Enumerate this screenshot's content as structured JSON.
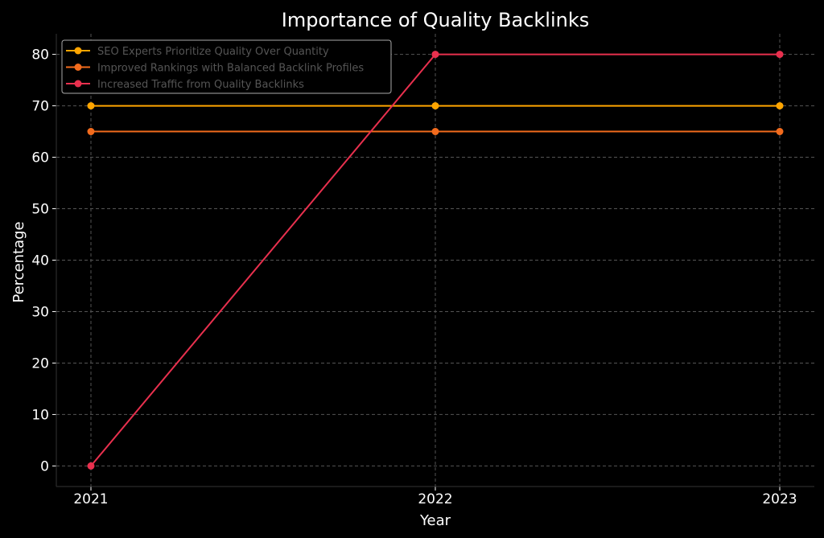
{
  "chart_data": {
    "type": "line",
    "title": "Importance of Quality Backlinks",
    "xlabel": "Year",
    "ylabel": "Percentage",
    "x": [
      "2021",
      "2022",
      "2023"
    ],
    "yticks": [
      0,
      10,
      20,
      30,
      40,
      50,
      60,
      70,
      80
    ],
    "ylim": [
      -4,
      84
    ],
    "grid": true,
    "legend_position": "top-left",
    "series": [
      {
        "name": "SEO Experts Prioritize Quality Over Quantity",
        "values": [
          70,
          70,
          70
        ],
        "color": "#ffa500"
      },
      {
        "name": "Improved Rankings with Balanced Backlink Profiles",
        "values": [
          65,
          65,
          65
        ],
        "color": "#f26b1d"
      },
      {
        "name": "Increased Traffic from Quality Backlinks",
        "values": [
          0,
          80,
          80
        ],
        "color": "#e8304e"
      }
    ]
  }
}
